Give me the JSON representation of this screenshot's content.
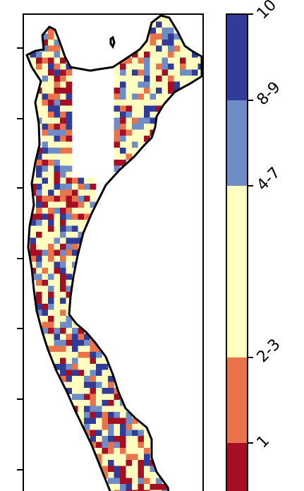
{
  "map": {
    "coastline_color": "#000000",
    "land_color": "#ffffff",
    "axis_ticks_left": 7
  },
  "legend": {
    "categories": [
      {
        "label": "1",
        "color": "#a50f26"
      },
      {
        "label": "2-3",
        "color": "#e9734a"
      },
      {
        "label": "4-7",
        "color": "#ffffc0"
      },
      {
        "label": "8-9",
        "color": "#6e8cc6"
      },
      {
        "label": "10",
        "color": "#313c98"
      }
    ],
    "tick_labels": [
      "1",
      "2-3",
      "4-7",
      "8-9",
      "10"
    ]
  }
}
